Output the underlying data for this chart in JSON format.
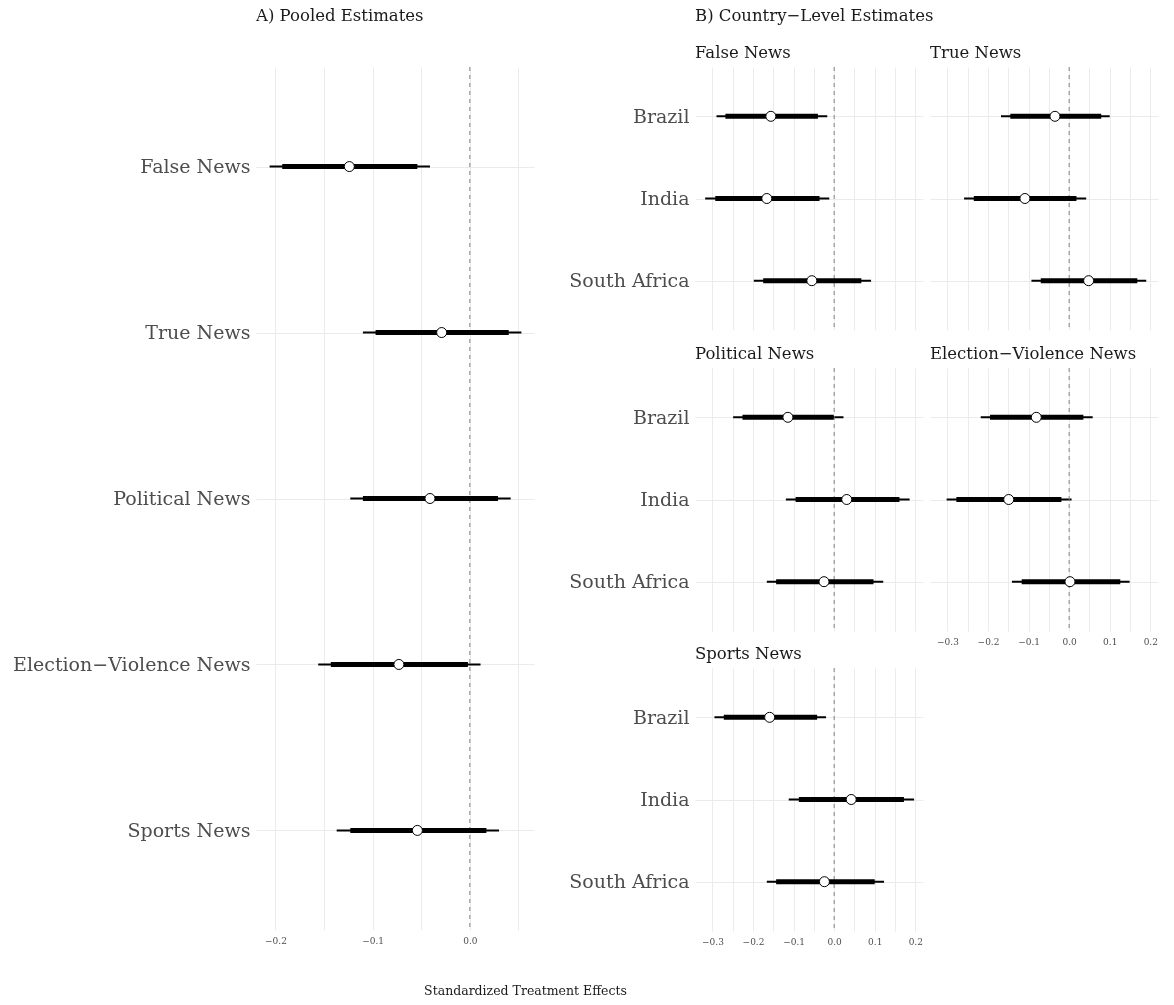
{
  "chart_data": [
    {
      "type": "scatter",
      "orientation": "horizontal",
      "title": "A) Pooled Estimates",
      "xlabel": "Standardized Treatment Effects",
      "categories": [
        "False News",
        "True News",
        "Political News",
        "Election−Violence News",
        "Sports News"
      ],
      "xlim": [
        -0.22,
        0.066
      ],
      "xticks": [
        -0.2,
        {
          "value": -0.15,
          "label": null
        },
        -0.1,
        {
          "value": -0.05,
          "label": null
        },
        {
          "value": 0,
          "label": "0.0"
        },
        {
          "value": 0.05,
          "label": null
        }
      ],
      "grid": true,
      "marker": "circle",
      "ref_lines": [
        {
          "axis": "x",
          "value": 0,
          "color": "#808080",
          "line_style": "dashed"
        }
      ],
      "series": [
        {
          "type": "bar",
          "color": "#000000",
          "base": [
            -0.193,
            -0.097,
            -0.11,
            -0.143,
            -0.123
          ],
          "values": [
            0.139,
            0.137,
            0.139,
            0.141,
            0.14
          ]
        },
        {
          "color": "#ffffff",
          "values": [
            -0.124,
            -0.029,
            -0.041,
            -0.073,
            -0.054
          ],
          "errors": [
            [
              -0.206,
              -0.041
            ],
            [
              -0.11,
              0.053
            ],
            [
              -0.123,
              0.042
            ],
            [
              -0.156,
              0.011
            ],
            [
              -0.137,
              0.03
            ]
          ]
        }
      ]
    },
    {
      "type": "scatter",
      "orientation": "horizontal",
      "title": "B) Country−Level Estimates",
      "subtitle": "False News",
      "categories": [
        "Brazil",
        "India",
        "South Africa"
      ],
      "xlim": [
        -0.343,
        0.219
      ],
      "xticks": [
        -0.3,
        {
          "value": -0.25,
          "label": null
        },
        -0.2,
        {
          "value": -0.15,
          "label": null
        },
        -0.1,
        {
          "value": -0.05,
          "label": null
        },
        0,
        {
          "value": 0.05,
          "label": null
        },
        0.1,
        {
          "value": 0.15,
          "label": null
        },
        0.2
      ],
      "tick_labels": "y",
      "grid": true,
      "marker": "circle",
      "ref_lines": [
        {
          "axis": "x",
          "value": 0,
          "color": "#808080",
          "line_style": "dashed"
        }
      ],
      "series": [
        {
          "type": "bar",
          "color": "#000000",
          "base": [
            -0.268,
            -0.293,
            -0.175
          ],
          "values": [
            0.228,
            0.257,
            0.242
          ]
        },
        {
          "color": "#ffffff",
          "values": [
            -0.156,
            -0.166,
            -0.055
          ],
          "errors": [
            [
              -0.29,
              -0.017
            ],
            [
              -0.318,
              -0.012
            ],
            [
              -0.198,
              0.091
            ]
          ]
        }
      ]
    },
    {
      "type": "scatter",
      "orientation": "horizontal",
      "title": "True News",
      "categories": [
        null,
        null,
        null
      ],
      "xlim": [
        -0.343,
        0.219
      ],
      "xticks": [
        -0.3,
        {
          "value": -0.25,
          "label": null
        },
        -0.2,
        {
          "value": -0.15,
          "label": null
        },
        -0.1,
        {
          "value": -0.05,
          "label": null
        },
        0,
        {
          "value": 0.05,
          "label": null
        },
        0.1,
        {
          "value": 0.15,
          "label": null
        },
        0.2
      ],
      "tick_labels": false,
      "grid": true,
      "marker": "circle",
      "ref_lines": [
        {
          "axis": "x",
          "value": 0,
          "color": "#808080",
          "line_style": "dashed"
        }
      ],
      "series": [
        {
          "type": "bar",
          "color": "#000000",
          "base": [
            -0.145,
            -0.235,
            -0.07
          ],
          "values": [
            0.224,
            0.253,
            0.238
          ]
        },
        {
          "color": "#ffffff",
          "values": [
            -0.035,
            -0.109,
            0.048
          ],
          "errors": [
            [
              -0.168,
              0.1
            ],
            [
              -0.259,
              0.042
            ],
            [
              -0.093,
              0.19
            ]
          ]
        }
      ]
    },
    {
      "type": "scatter",
      "orientation": "horizontal",
      "title": "Political News",
      "categories": [
        "Brazil",
        "India",
        "South Africa"
      ],
      "xlim": [
        -0.343,
        0.219
      ],
      "xticks": [
        -0.3,
        {
          "value": -0.25,
          "label": null
        },
        -0.2,
        {
          "value": -0.15,
          "label": null
        },
        -0.1,
        {
          "value": -0.05,
          "label": null
        },
        0,
        {
          "value": 0.05,
          "label": null
        },
        0.1,
        {
          "value": 0.15,
          "label": null
        },
        0.2
      ],
      "tick_labels": "y",
      "grid": true,
      "marker": "circle",
      "ref_lines": [
        {
          "axis": "x",
          "value": 0,
          "color": "#808080",
          "line_style": "dashed"
        }
      ],
      "series": [
        {
          "type": "bar",
          "color": "#000000",
          "base": [
            -0.226,
            -0.095,
            -0.143
          ],
          "values": [
            0.225,
            0.256,
            0.24
          ]
        },
        {
          "color": "#ffffff",
          "values": [
            -0.114,
            0.031,
            -0.025
          ],
          "errors": [
            [
              -0.249,
              0.023
            ],
            [
              -0.119,
              0.186
            ],
            [
              -0.166,
              0.121
            ]
          ]
        }
      ]
    },
    {
      "type": "scatter",
      "orientation": "horizontal",
      "title": "Election−Violence News",
      "categories": [
        null,
        null,
        null
      ],
      "xlim": [
        -0.343,
        0.219
      ],
      "xticks": [
        -0.3,
        {
          "value": -0.25,
          "label": null
        },
        -0.2,
        {
          "value": -0.15,
          "label": null
        },
        -0.1,
        {
          "value": -0.05,
          "label": null
        },
        {
          "value": 0,
          "label": "0.0"
        },
        {
          "value": 0.05,
          "label": null
        },
        0.1,
        {
          "value": 0.15,
          "label": null
        },
        0.2
      ],
      "tick_labels": "x",
      "grid": true,
      "marker": "circle",
      "ref_lines": [
        {
          "axis": "x",
          "value": 0,
          "color": "#808080",
          "line_style": "dashed"
        }
      ],
      "series": [
        {
          "type": "bar",
          "color": "#000000",
          "base": [
            -0.195,
            -0.278,
            -0.117
          ],
          "values": [
            0.23,
            0.259,
            0.243
          ]
        },
        {
          "color": "#ffffff",
          "values": [
            -0.081,
            -0.149,
            0.002
          ],
          "errors": [
            [
              -0.218,
              0.058
            ],
            [
              -0.302,
              0.006
            ],
            [
              -0.141,
              0.149
            ]
          ]
        }
      ]
    },
    {
      "type": "scatter",
      "orientation": "horizontal",
      "title": "Sports News",
      "categories": [
        "Brazil",
        "India",
        "South Africa"
      ],
      "xlim": [
        -0.343,
        0.219
      ],
      "xticks": [
        -0.3,
        {
          "value": -0.25,
          "label": null
        },
        -0.2,
        {
          "value": -0.15,
          "label": null
        },
        -0.1,
        {
          "value": -0.05,
          "label": null
        },
        {
          "value": 0,
          "label": "0.0"
        },
        {
          "value": 0.05,
          "label": null
        },
        0.1,
        {
          "value": 0.15,
          "label": null
        },
        0.2
      ],
      "grid": true,
      "marker": "circle",
      "ref_lines": [
        {
          "axis": "x",
          "value": 0,
          "color": "#808080",
          "line_style": "dashed"
        }
      ],
      "series": [
        {
          "type": "bar",
          "color": "#000000",
          "base": [
            -0.272,
            -0.087,
            -0.143
          ],
          "values": [
            0.23,
            0.259,
            0.243
          ]
        },
        {
          "color": "#ffffff",
          "values": [
            -0.159,
            0.042,
            -0.024
          ],
          "errors": [
            [
              -0.295,
              -0.02
            ],
            [
              -0.112,
              0.197
            ],
            [
              -0.166,
              0.123
            ]
          ]
        }
      ]
    }
  ]
}
